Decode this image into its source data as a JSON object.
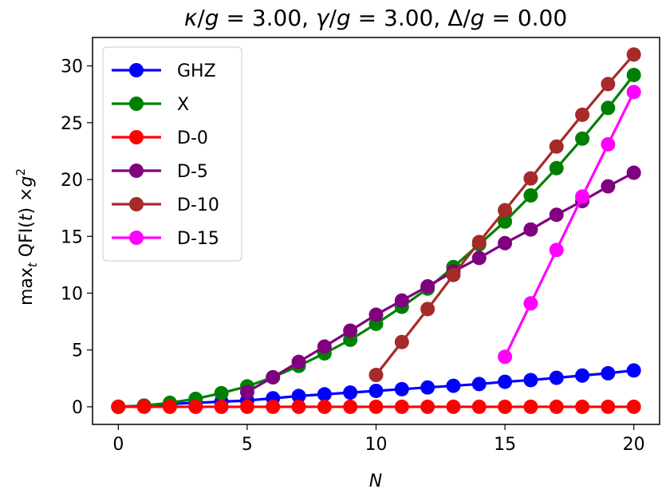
{
  "chart_data": {
    "type": "line",
    "title": "κ/g = 3.00, γ/g = 3.00, Δ/g = 0.00",
    "title_parts": {
      "kappa": "κ",
      "gamma": "γ",
      "delta": "Δ",
      "g": "g",
      "slash": "/",
      "eq": " = ",
      "sep": ", ",
      "kappa_val": "3.00",
      "gamma_val": "3.00",
      "delta_val": "0.00"
    },
    "xlabel": "N",
    "ylabel": "max_t QFI(t) ×g^2",
    "ylabel_parts": {
      "max": "max",
      "sub": "t",
      "qfi": " QFI(",
      "t": "t",
      "close": ") ×",
      "g": "g",
      "sup": "2"
    },
    "xlim": [
      -1,
      21
    ],
    "ylim": [
      -1.55,
      32.5
    ],
    "xticks": [
      0,
      5,
      10,
      15,
      20
    ],
    "xtick_labels": [
      "0",
      "5",
      "10",
      "15",
      "20"
    ],
    "yticks": [
      0,
      5,
      10,
      15,
      20,
      25,
      30
    ],
    "ytick_labels": [
      "0",
      "5",
      "10",
      "15",
      "20",
      "25",
      "30"
    ],
    "legend_position": "top-left",
    "series": [
      {
        "name": "GHZ",
        "color": "#0000ff",
        "x": [
          0,
          1,
          2,
          3,
          4,
          5,
          6,
          7,
          8,
          9,
          10,
          11,
          12,
          13,
          14,
          15,
          16,
          17,
          18,
          19,
          20
        ],
        "values": [
          0,
          0.1,
          0.25,
          0.35,
          0.45,
          0.55,
          0.75,
          0.95,
          1.1,
          1.25,
          1.4,
          1.55,
          1.7,
          1.85,
          2.0,
          2.2,
          2.35,
          2.55,
          2.75,
          2.95,
          3.2
        ]
      },
      {
        "name": "X",
        "color": "#008000",
        "x": [
          0,
          1,
          2,
          3,
          4,
          5,
          6,
          7,
          8,
          9,
          10,
          11,
          12,
          13,
          14,
          15,
          16,
          17,
          18,
          19,
          20
        ],
        "values": [
          0,
          0.1,
          0.35,
          0.7,
          1.2,
          1.8,
          2.6,
          3.6,
          4.7,
          5.9,
          7.3,
          8.8,
          10.4,
          12.3,
          14.3,
          16.3,
          18.6,
          21.0,
          23.6,
          26.3,
          29.2
        ]
      },
      {
        "name": "D-0",
        "color": "#ff0000",
        "x": [
          0,
          1,
          2,
          3,
          4,
          5,
          6,
          7,
          8,
          9,
          10,
          11,
          12,
          13,
          14,
          15,
          16,
          17,
          18,
          19,
          20
        ],
        "values": [
          0,
          0,
          0,
          0,
          0,
          0,
          0,
          0,
          0,
          0,
          0,
          0,
          0,
          0,
          0,
          0,
          0,
          0,
          0,
          0,
          0
        ]
      },
      {
        "name": "D-5",
        "color": "#800080",
        "x": [
          5,
          6,
          7,
          8,
          9,
          10,
          11,
          12,
          13,
          14,
          15,
          16,
          17,
          18,
          19,
          20
        ],
        "values": [
          1.3,
          2.6,
          3.95,
          5.3,
          6.7,
          8.1,
          9.35,
          10.6,
          11.9,
          13.1,
          14.4,
          15.6,
          16.9,
          18.1,
          19.4,
          20.6
        ]
      },
      {
        "name": "D-10",
        "color": "#a52a2a",
        "x": [
          10,
          11,
          12,
          13,
          14,
          15,
          16,
          17,
          18,
          19,
          20
        ],
        "values": [
          2.8,
          5.7,
          8.6,
          11.6,
          14.5,
          17.3,
          20.1,
          22.9,
          25.7,
          28.4,
          31.0
        ]
      },
      {
        "name": "D-15",
        "color": "#ff00ff",
        "x": [
          15,
          16,
          17,
          18,
          19,
          20
        ],
        "values": [
          4.4,
          9.1,
          13.8,
          18.5,
          23.1,
          27.7
        ]
      }
    ]
  }
}
